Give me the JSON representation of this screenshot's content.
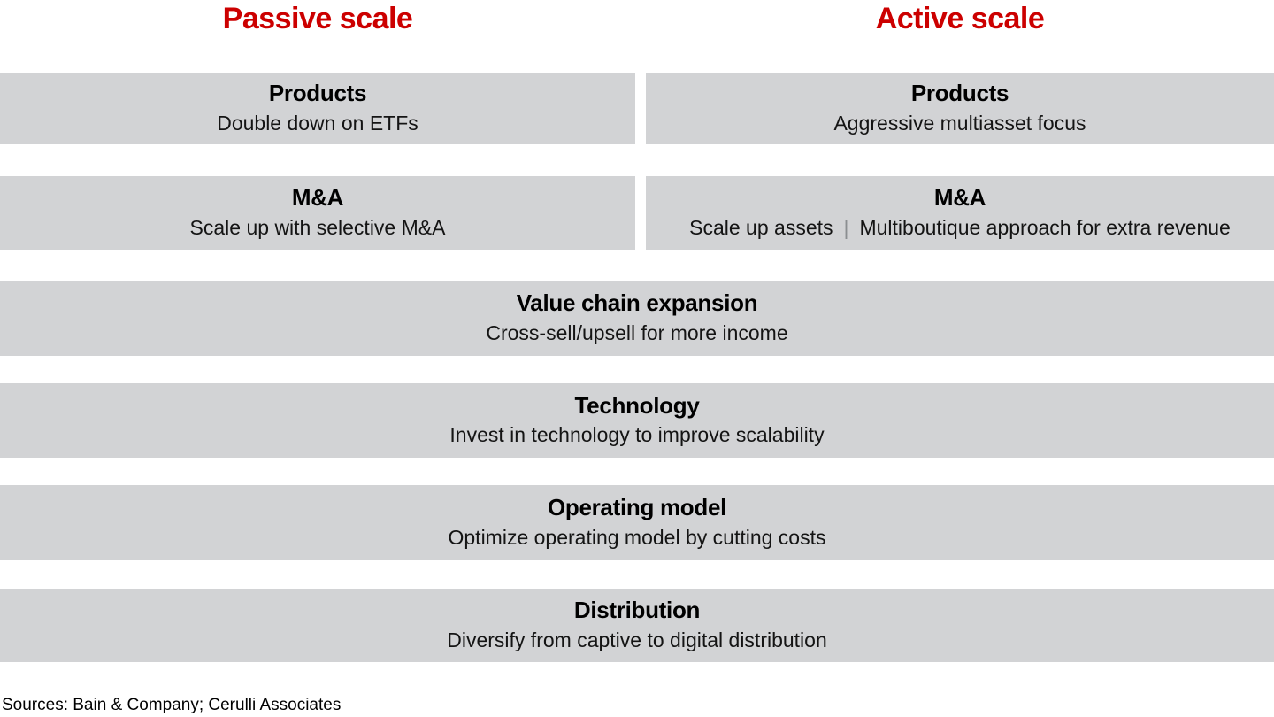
{
  "headers": {
    "left": "Passive scale",
    "right": "Active scale"
  },
  "split_rows": [
    {
      "left": {
        "title": "Products",
        "subtitle": "Double down on ETFs"
      },
      "right": {
        "title": "Products",
        "subtitle": "Aggressive multiasset focus"
      }
    },
    {
      "left": {
        "title": "M&A",
        "subtitle": "Scale up with selective M&A"
      },
      "right": {
        "title": "M&A",
        "subtitle_left": "Scale up assets",
        "separator": "|",
        "subtitle_right": "Multiboutique approach for extra revenue"
      }
    }
  ],
  "full_rows": [
    {
      "title": "Value chain expansion",
      "subtitle": "Cross-sell/upsell for more income"
    },
    {
      "title": "Technology",
      "subtitle": "Invest in technology to improve scalability"
    },
    {
      "title": "Operating model",
      "subtitle": "Optimize operating model by cutting costs"
    },
    {
      "title": "Distribution",
      "subtitle": "Diversify from captive to digital distribution"
    }
  ],
  "footer": "Sources: Bain & Company; Cerulli Associates",
  "colors": {
    "accent_red": "#cc0000",
    "box_gray": "#d2d3d5",
    "separator_gray": "#8b8e91",
    "text_black": "#000000"
  }
}
